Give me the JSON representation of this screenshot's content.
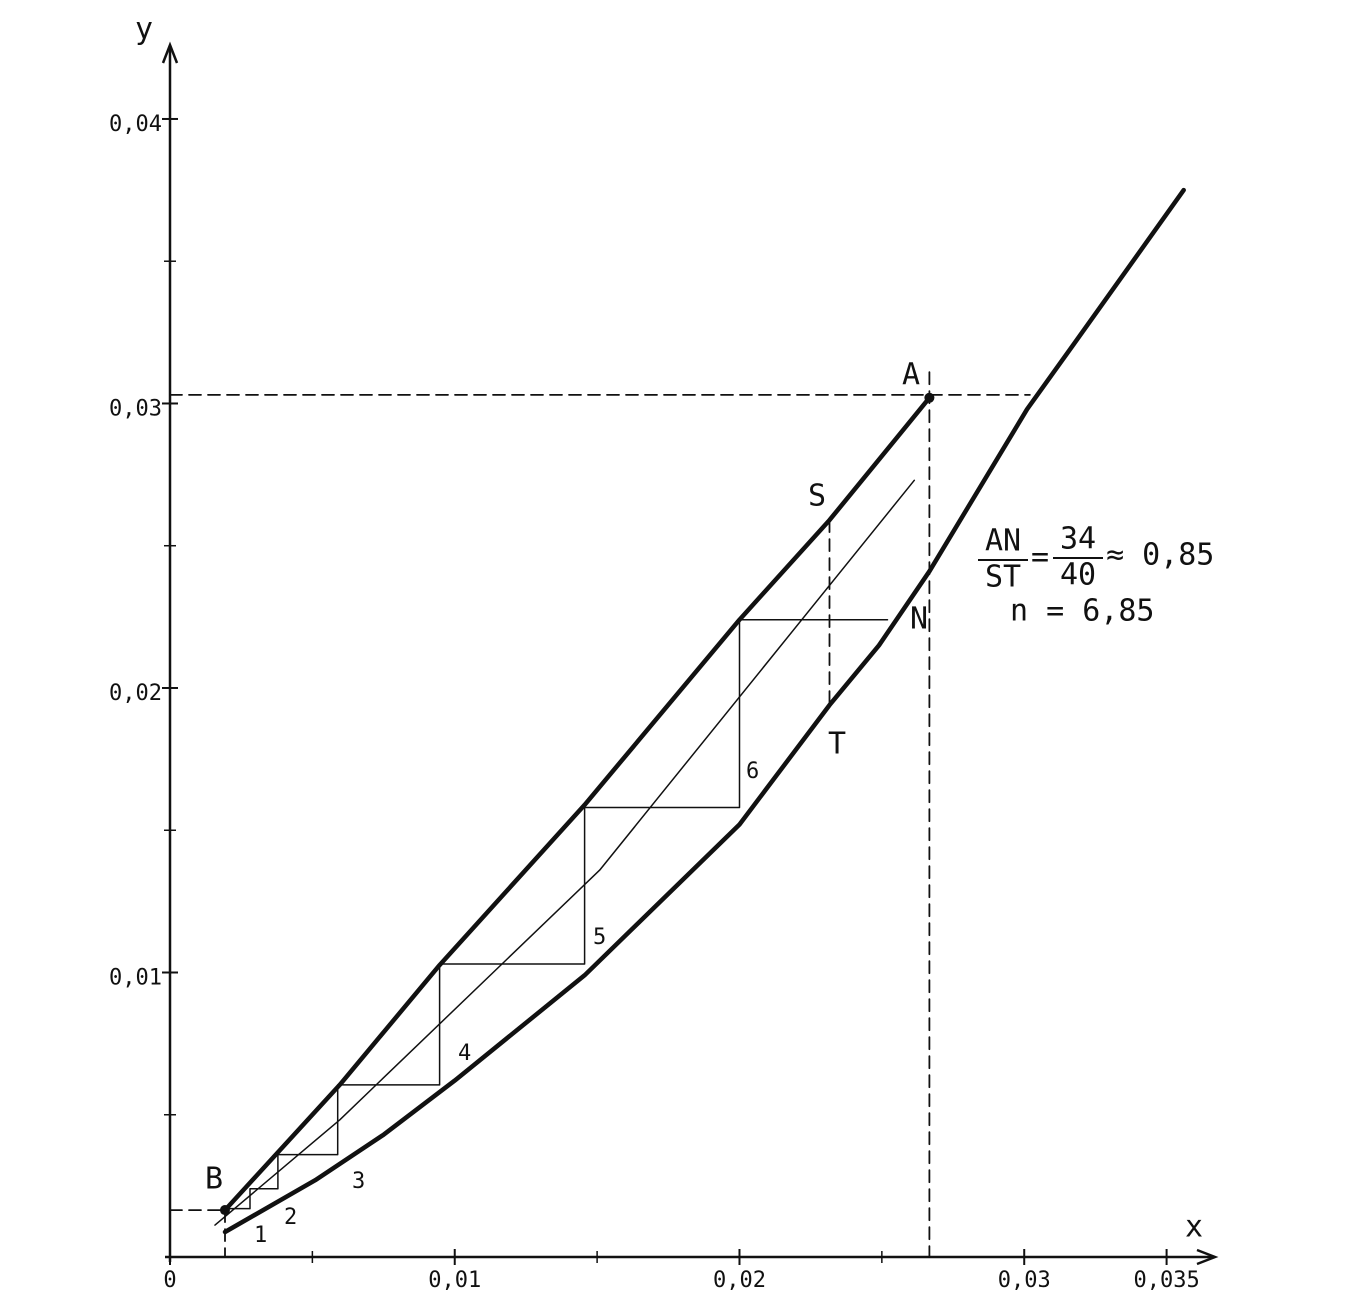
{
  "chart_data": {
    "type": "line",
    "x_label": "x",
    "y_label": "y",
    "xlim": [
      0,
      0.0367
    ],
    "ylim": [
      0,
      0.0426
    ],
    "xticks": [
      0,
      {
        "value": 0.01,
        "label": "0,01"
      },
      {
        "value": 0.02,
        "label": "0,02"
      },
      {
        "value": 0.03,
        "label": "0,03"
      },
      {
        "value": 0.035,
        "label": "0,035"
      }
    ],
    "yticks": [
      {
        "value": 0.01,
        "label": "0,01"
      },
      {
        "value": 0.02,
        "label": "0,02"
      },
      {
        "value": 0.03,
        "label": "0,03"
      },
      {
        "value": 0.04,
        "label": "0,04"
      }
    ],
    "xminor": [
      0.005,
      0.015,
      0.025
    ],
    "yminor": [
      0.005,
      0.015,
      0.025,
      0.035
    ],
    "color": "#111111",
    "lines": [
      {
        "style": "thick",
        "x": [
          0.00193,
          0.0051,
          0.0075,
          0.01,
          0.01456,
          0.02,
          0.02316,
          0.0249,
          0.02667,
          0.0301,
          0.03175,
          0.0356
        ],
        "values": [
          0.00088,
          0.0027,
          0.0043,
          0.0062,
          0.0099,
          0.0152,
          0.0194,
          0.0215,
          0.0241,
          0.0298,
          0.0321,
          0.0375
        ]
      },
      {
        "style": "thick",
        "x": [
          0.00193,
          0.00596,
          0.00947,
          0.01456,
          0.02,
          0.02316,
          0.02667
        ],
        "values": [
          0.00165,
          0.00605,
          0.01026,
          0.01589,
          0.0224,
          0.0259,
          0.0302
        ]
      },
      {
        "style": "thin",
        "x": [
          0.00158,
          0.00596,
          0.01509,
          0.02614
        ],
        "values": [
          0.00112,
          0.00482,
          0.0136,
          0.0273
        ]
      },
      {
        "style": "thin",
        "x": [
          0.0252,
          0.02,
          0.02,
          0.01456,
          0.01456,
          0.00947,
          0.00947,
          0.00589,
          0.00589,
          0.00379,
          0.00379,
          0.00281,
          0.00281,
          0.00193
        ],
        "values": [
          0.0224,
          0.0224,
          0.0158,
          0.0158,
          0.0103,
          0.0103,
          0.00605,
          0.00605,
          0.0036,
          0.0036,
          0.0024,
          0.0024,
          0.0017,
          0.0017
        ]
      },
      {
        "style": "dashed",
        "x": [
          0,
          0.0302
        ],
        "values": [
          0.0303,
          0.0303
        ]
      },
      {
        "style": "dashed",
        "x": [
          0.02667,
          0.02667
        ],
        "values": [
          0.0311,
          0
        ]
      },
      {
        "style": "dashed",
        "x": [
          0,
          0.00193
        ],
        "values": [
          0.00165,
          0.00165
        ]
      },
      {
        "style": "dashed",
        "x": [
          0.00193,
          0.00193
        ],
        "values": [
          0.00165,
          0
        ]
      },
      {
        "style": "dashed",
        "x": [
          0.02316,
          0.02316
        ],
        "values": [
          0.0259,
          0.0194
        ]
      }
    ],
    "point_labels": [
      "A",
      "B",
      "S",
      "N",
      "T"
    ],
    "step_labels": [
      "1",
      "2",
      "3",
      "4",
      "5",
      "6"
    ],
    "ratio": {
      "left_num": "AN",
      "left_den": "ST",
      "equals": "=",
      "right_num": "34",
      "right_den": "40",
      "result": "≈ 0,85"
    },
    "stage_count": "n = 6,85"
  }
}
